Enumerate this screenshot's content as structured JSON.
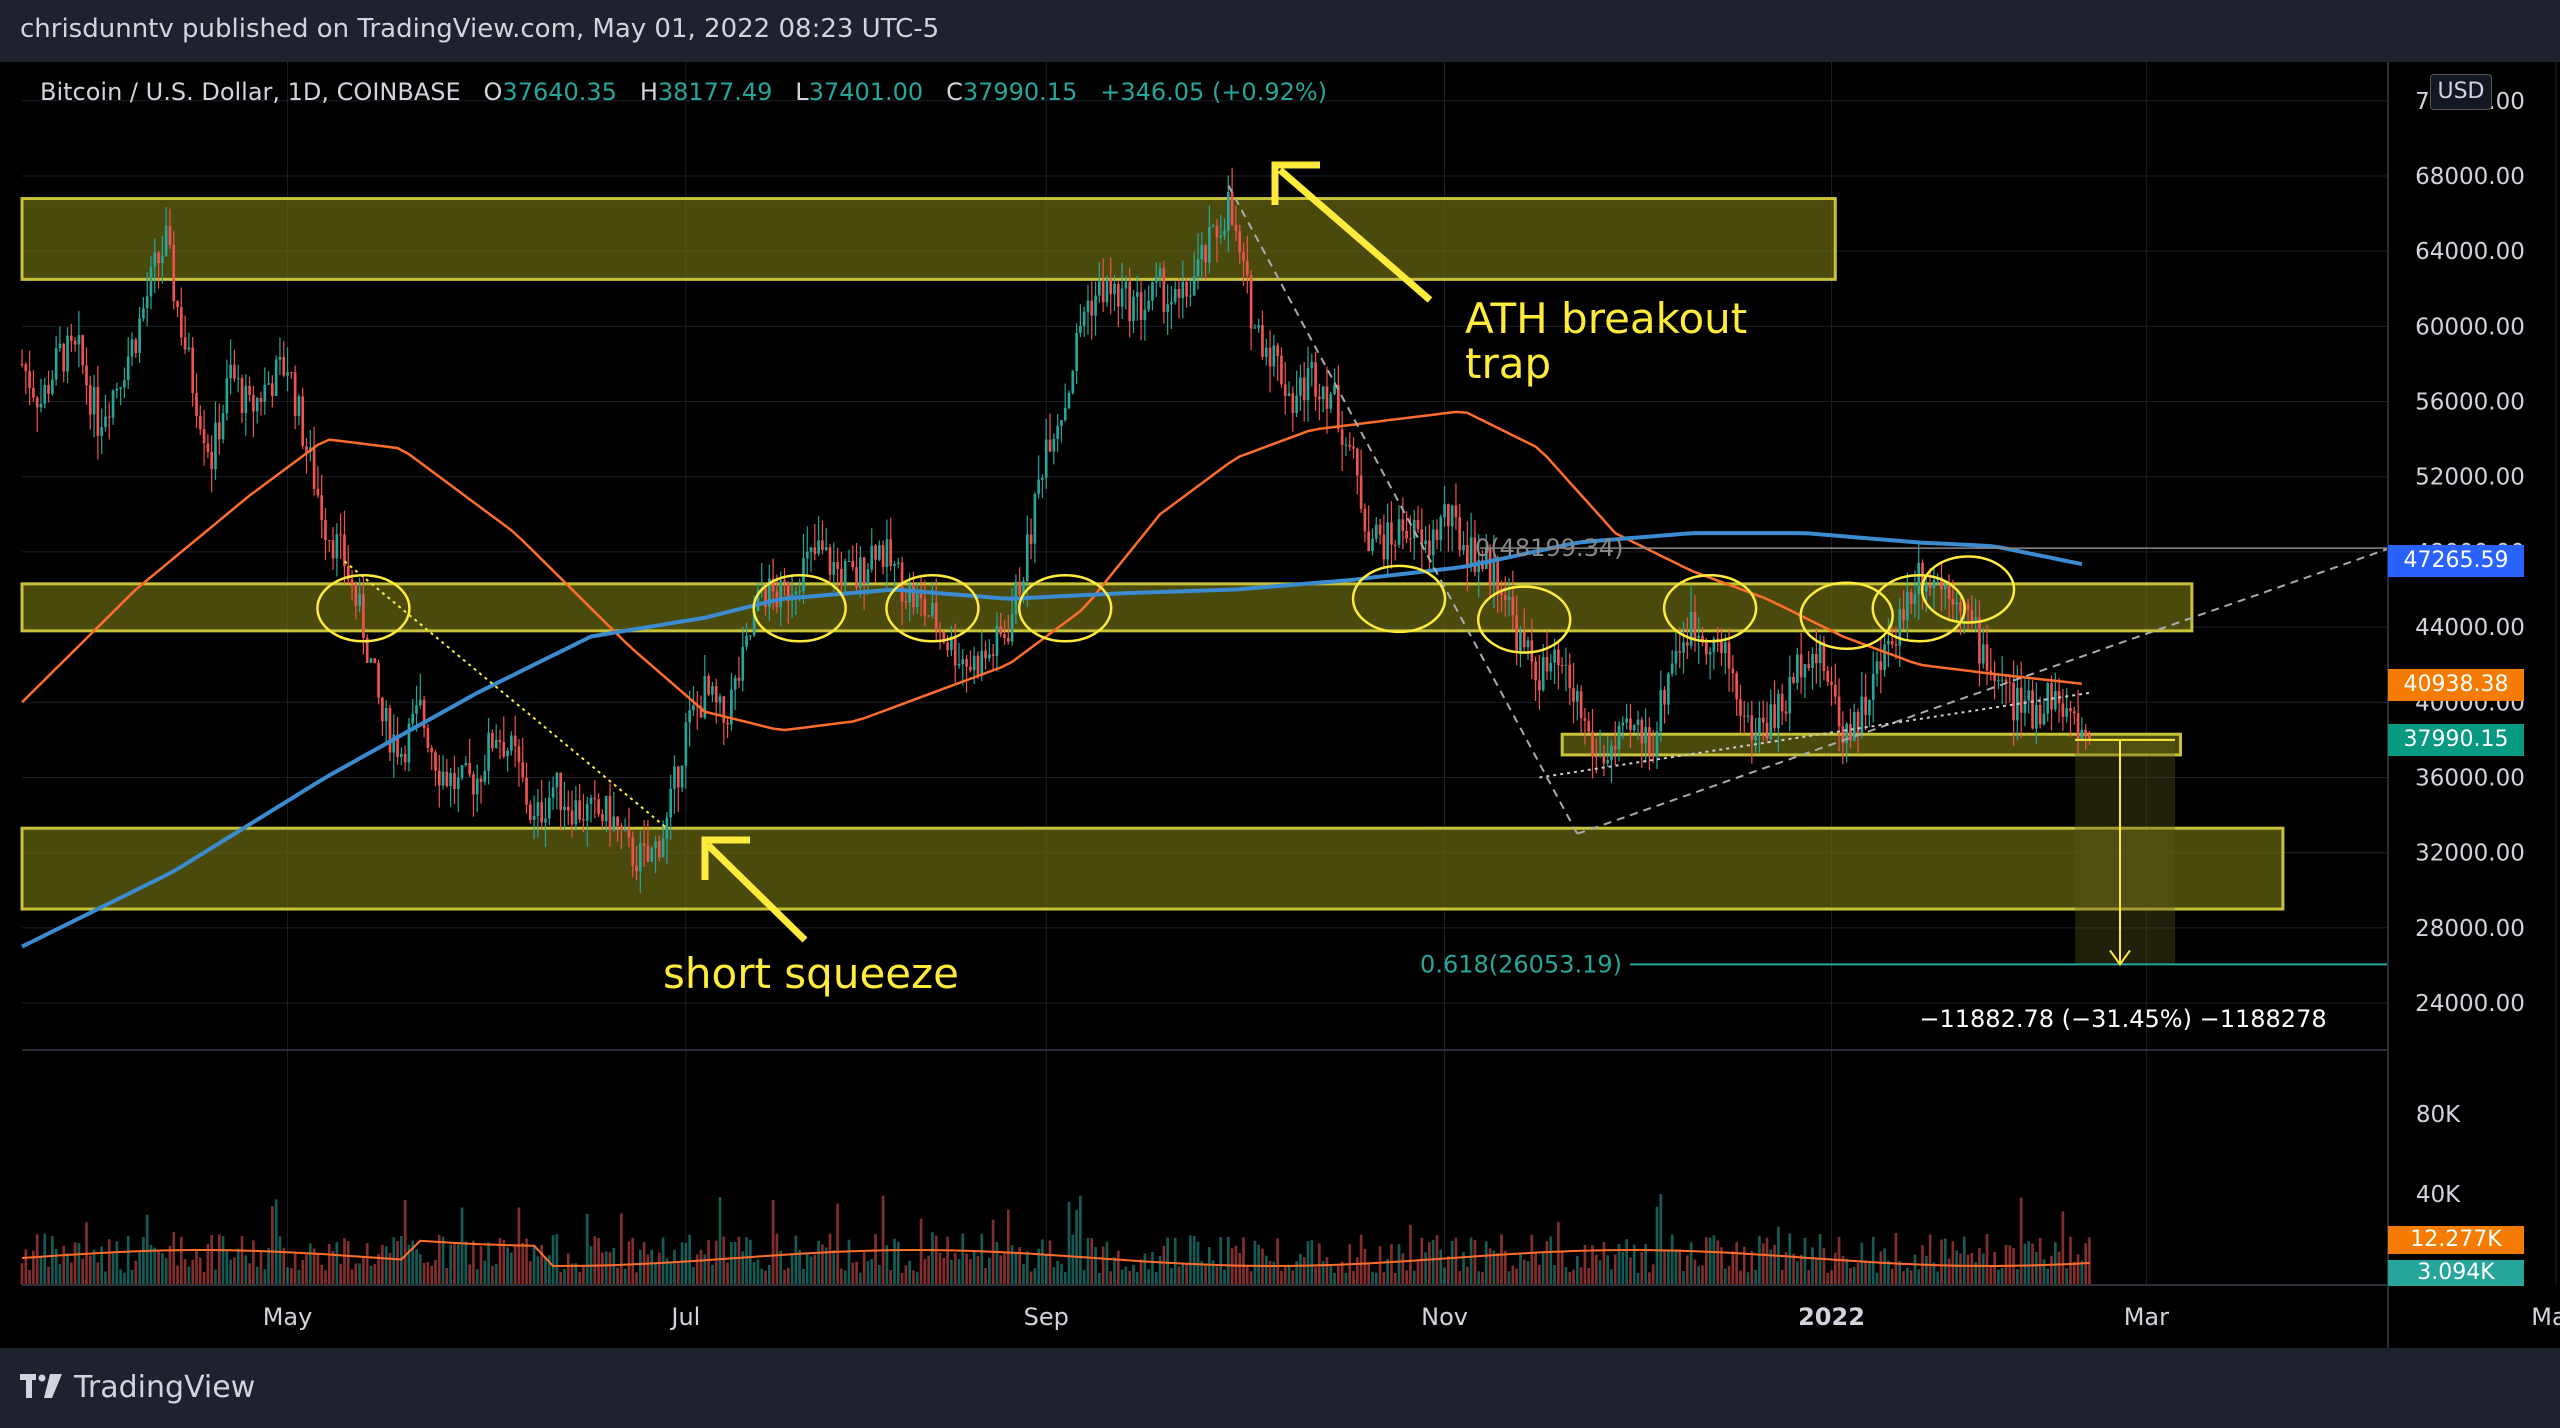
{
  "header": {
    "published": "chrisdunntv published on TradingView.com, May 01, 2022 08:23 UTC-5"
  },
  "legend": {
    "symbol": "Bitcoin / U.S. Dollar, 1D, COINBASE",
    "o_label": "O",
    "o_value": "37640.35",
    "h_label": "H",
    "h_value": "38177.49",
    "l_label": "L",
    "l_value": "37401.00",
    "c_label": "C",
    "c_value": "37990.15",
    "change": "+346.05 (+0.92%)"
  },
  "currency_badge": "USD",
  "footer": {
    "brand": "TradingView",
    "logo_icon": "tradingview-logo-icon"
  },
  "colors": {
    "background": "#000000",
    "grid": "#1c1f26",
    "candle_up": "#26a69a",
    "candle_down": "#ef5350",
    "ma_orange": "#ff6d2c",
    "ma_blue": "#3b8bd0",
    "zone_fill": "#6b6a12",
    "zone_stroke": "#c8c23a",
    "annotation": "#ffeb3b"
  },
  "annotations": {
    "ath_line1": "ATH breakout",
    "ath_line2": "trap",
    "short_squeeze": "short squeeze",
    "fib_label": "0.618(26053.19)",
    "fib_top_label": "0(48199.34)",
    "measure_label": "−11882.78 (−31.45%) −1188278"
  },
  "price_tags": {
    "ma_blue": "47265.59",
    "ma_orange": "40938.38",
    "last_price": "37990.15",
    "vol_ma": "12.277K",
    "vol": "3.094K"
  },
  "chart_data": {
    "type": "candlestick",
    "symbol": "Bitcoin / U.S. Dollar",
    "timeframe": "1D",
    "x_ticks": [
      "May",
      "Jul",
      "Sep",
      "Nov",
      "2022",
      "Mar",
      "May"
    ],
    "y_ticks": [
      "72000.00",
      "68000.00",
      "64000.00",
      "60000.00",
      "56000.00",
      "52000.00",
      "48000.00",
      "44000.00",
      "40000.00",
      "36000.00",
      "32000.00",
      "28000.00",
      "24000.00"
    ],
    "ylim": [
      21500,
      73000
    ],
    "volume_ticks": [
      "80K",
      "40K"
    ],
    "price_path": [
      [
        0,
        58000
      ],
      [
        5,
        56000
      ],
      [
        10,
        58500
      ],
      [
        15,
        58500
      ],
      [
        20,
        55000
      ],
      [
        25,
        57000
      ],
      [
        30,
        59500
      ],
      [
        35,
        63000
      ],
      [
        38,
        64500
      ],
      [
        40,
        62000
      ],
      [
        45,
        57000
      ],
      [
        50,
        53000
      ],
      [
        55,
        57500
      ],
      [
        60,
        55500
      ],
      [
        65,
        57000
      ],
      [
        70,
        58000
      ],
      [
        75,
        53500
      ],
      [
        80,
        49500
      ],
      [
        85,
        47500
      ],
      [
        90,
        44000
      ],
      [
        95,
        39000
      ],
      [
        100,
        37500
      ],
      [
        105,
        39500
      ],
      [
        110,
        36500
      ],
      [
        115,
        35500
      ],
      [
        120,
        36000
      ],
      [
        125,
        38500
      ],
      [
        130,
        37000
      ],
      [
        135,
        33500
      ],
      [
        140,
        35500
      ],
      [
        145,
        34500
      ],
      [
        150,
        34000
      ],
      [
        155,
        34000
      ],
      [
        160,
        32000
      ],
      [
        165,
        31500
      ],
      [
        170,
        33500
      ],
      [
        175,
        38500
      ],
      [
        180,
        40500
      ],
      [
        185,
        39000
      ],
      [
        190,
        42000
      ],
      [
        195,
        46000
      ],
      [
        200,
        45500
      ],
      [
        205,
        47000
      ],
      [
        210,
        48000
      ],
      [
        215,
        47000
      ],
      [
        220,
        46500
      ],
      [
        225,
        48500
      ],
      [
        230,
        47000
      ],
      [
        235,
        45500
      ],
      [
        240,
        44500
      ],
      [
        245,
        43000
      ],
      [
        250,
        42000
      ],
      [
        255,
        42500
      ],
      [
        260,
        44000
      ],
      [
        265,
        48000
      ],
      [
        270,
        54000
      ],
      [
        275,
        56000
      ],
      [
        280,
        61000
      ],
      [
        285,
        62000
      ],
      [
        290,
        61500
      ],
      [
        295,
        61000
      ],
      [
        300,
        62000
      ],
      [
        305,
        61000
      ],
      [
        310,
        63000
      ],
      [
        315,
        65000
      ],
      [
        318,
        66500
      ],
      [
        320,
        64500
      ],
      [
        325,
        60000
      ],
      [
        330,
        58500
      ],
      [
        335,
        56000
      ],
      [
        340,
        57500
      ],
      [
        345,
        56500
      ],
      [
        350,
        53500
      ],
      [
        355,
        49000
      ],
      [
        360,
        48500
      ],
      [
        365,
        49500
      ],
      [
        370,
        48000
      ],
      [
        375,
        50000
      ],
      [
        380,
        48500
      ],
      [
        385,
        47500
      ],
      [
        390,
        46500
      ],
      [
        395,
        43000
      ],
      [
        400,
        41500
      ],
      [
        405,
        41800
      ],
      [
        410,
        40000
      ],
      [
        415,
        37000
      ],
      [
        420,
        37500
      ],
      [
        425,
        38500
      ],
      [
        430,
        38000
      ],
      [
        435,
        42500
      ],
      [
        440,
        44000
      ],
      [
        445,
        43500
      ],
      [
        450,
        42000
      ],
      [
        455,
        38500
      ],
      [
        460,
        39000
      ],
      [
        465,
        40000
      ],
      [
        470,
        43000
      ],
      [
        475,
        42000
      ],
      [
        480,
        38500
      ],
      [
        485,
        39500
      ],
      [
        490,
        42000
      ],
      [
        495,
        44500
      ],
      [
        500,
        47000
      ],
      [
        505,
        46500
      ],
      [
        510,
        46000
      ],
      [
        515,
        43500
      ],
      [
        520,
        41500
      ],
      [
        525,
        40000
      ],
      [
        530,
        39500
      ],
      [
        535,
        40500
      ],
      [
        540,
        39000
      ],
      [
        545,
        37990
      ]
    ],
    "ma_orange": [
      [
        0,
        40000
      ],
      [
        30,
        46000
      ],
      [
        60,
        51000
      ],
      [
        80,
        54000
      ],
      [
        100,
        53500
      ],
      [
        130,
        49000
      ],
      [
        160,
        43000
      ],
      [
        180,
        39500
      ],
      [
        200,
        38500
      ],
      [
        220,
        39000
      ],
      [
        240,
        40500
      ],
      [
        260,
        42000
      ],
      [
        280,
        45000
      ],
      [
        300,
        50000
      ],
      [
        320,
        53000
      ],
      [
        340,
        54500
      ],
      [
        360,
        55000
      ],
      [
        380,
        55500
      ],
      [
        400,
        53500
      ],
      [
        420,
        49000
      ],
      [
        440,
        47000
      ],
      [
        460,
        45500
      ],
      [
        480,
        43500
      ],
      [
        500,
        42000
      ],
      [
        520,
        41500
      ],
      [
        545,
        40938
      ]
    ],
    "ma_blue": [
      [
        0,
        27000
      ],
      [
        40,
        31000
      ],
      [
        80,
        36000
      ],
      [
        120,
        40500
      ],
      [
        150,
        43500
      ],
      [
        180,
        44500
      ],
      [
        200,
        45500
      ],
      [
        230,
        46000
      ],
      [
        260,
        45500
      ],
      [
        290,
        45800
      ],
      [
        320,
        46000
      ],
      [
        350,
        46500
      ],
      [
        380,
        47200
      ],
      [
        410,
        48500
      ],
      [
        440,
        49000
      ],
      [
        470,
        49000
      ],
      [
        500,
        48500
      ],
      [
        520,
        48300
      ],
      [
        545,
        47266
      ]
    ],
    "zones": [
      {
        "from": 0,
        "to": 478,
        "low": 62500,
        "high": 66800
      },
      {
        "from": 0,
        "to": 572,
        "low": 43800,
        "high": 46300
      },
      {
        "from": 0,
        "to": 596,
        "low": 29000,
        "high": 33300
      },
      {
        "from": 406,
        "to": 569,
        "low": 37200,
        "high": 38300
      }
    ],
    "volume_ma_level": "12.277K",
    "last_volume": "3.094K"
  }
}
